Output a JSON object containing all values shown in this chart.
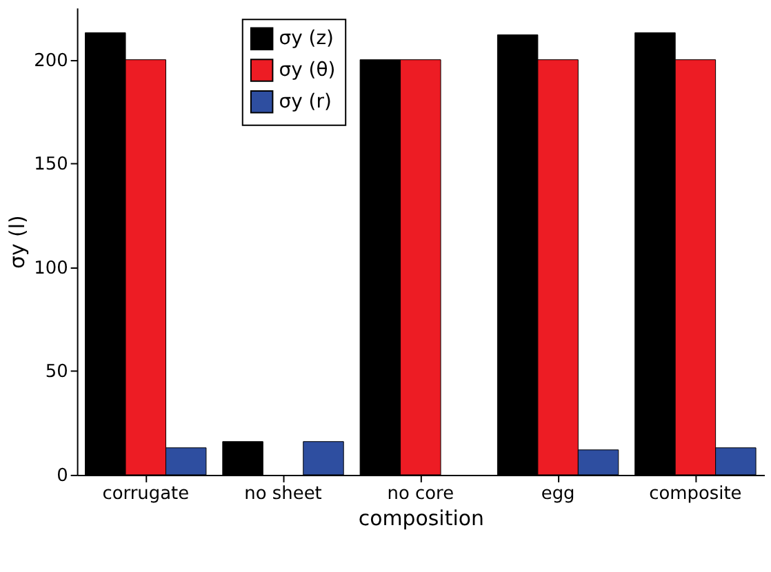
{
  "chart_data": {
    "type": "bar",
    "xlabel": "composition",
    "ylabel": "σy (l)",
    "categories": [
      "corrugate",
      "no sheet",
      "no core",
      "egg",
      "composite"
    ],
    "series": [
      {
        "name": "σy (z)",
        "color": "#000000",
        "values": [
          213,
          16,
          200,
          212,
          213
        ]
      },
      {
        "name": "σy (θ)",
        "color": "#ed1c24",
        "values": [
          200,
          null,
          200,
          200,
          200
        ]
      },
      {
        "name": "σy (r)",
        "color": "#2e4ea0",
        "values": [
          13,
          16,
          null,
          12,
          13
        ]
      }
    ],
    "ylim": [
      0,
      225
    ],
    "yticks": [
      0,
      50,
      100,
      150,
      200
    ],
    "grid": false,
    "legend": "top left"
  }
}
